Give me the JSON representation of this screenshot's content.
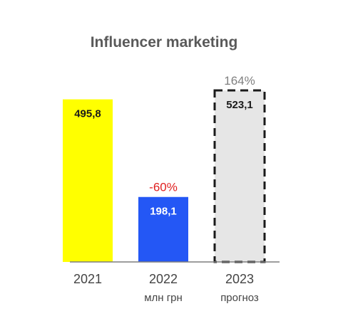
{
  "chart_data": {
    "type": "bar",
    "title": "Influencer marketing",
    "categories": [
      "2021",
      "2022",
      "2023"
    ],
    "values": [
      495.8,
      198.1,
      523.1
    ],
    "value_labels": [
      "495,8",
      "198,1",
      "523,1"
    ],
    "change_labels": [
      "",
      "-60%",
      "164%"
    ],
    "sub_labels": [
      "",
      "млн грн",
      "прогноз"
    ],
    "ylim": [
      0,
      560
    ],
    "grid": false,
    "legend": "none",
    "bar_colors": [
      "#ffff00",
      "#2457f5",
      "#e6e6e6"
    ],
    "bar_styles": [
      "solid",
      "solid",
      "dashed"
    ],
    "value_label_colors": [
      "#1a1a1a",
      "#ffffff",
      "#1a1a1a"
    ],
    "change_label_colors": [
      "#808080",
      "#e02020",
      "#808080"
    ],
    "axis_color": "#7f7f7f"
  }
}
